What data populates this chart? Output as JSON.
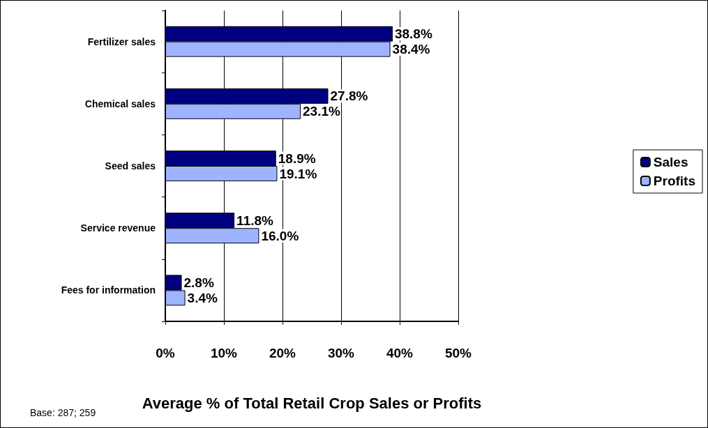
{
  "chart_data": {
    "type": "bar",
    "orientation": "horizontal",
    "xlabel": "Average % of Total Retail Crop Sales or Profits",
    "categories": [
      "Fertilizer sales",
      "Chemical sales",
      "Seed sales",
      "Service revenue",
      "Fees for information"
    ],
    "series": [
      {
        "name": "Sales",
        "color": "#000080",
        "values": [
          38.8,
          27.8,
          18.9,
          11.8,
          2.8
        ],
        "value_labels": [
          "38.8%",
          "27.8%",
          "18.9%",
          "11.8%",
          "2.8%"
        ]
      },
      {
        "name": "Profits",
        "color": "#9fb4ff",
        "values": [
          38.4,
          23.1,
          19.1,
          16.0,
          3.4
        ],
        "value_labels": [
          "38.4%",
          "23.1%",
          "19.1%",
          "16.0%",
          "3.4%"
        ]
      }
    ],
    "xlim": [
      0,
      50
    ],
    "xticks": [
      {
        "value": 0,
        "label": "0%"
      },
      {
        "value": 10,
        "label": "10%"
      },
      {
        "value": 20,
        "label": "20%"
      },
      {
        "value": 30,
        "label": "30%"
      },
      {
        "value": 40,
        "label": "40%"
      },
      {
        "value": 50,
        "label": "50%"
      }
    ],
    "grid": "x",
    "legend": "right",
    "annotations": [
      "Base: 287; 259"
    ]
  }
}
